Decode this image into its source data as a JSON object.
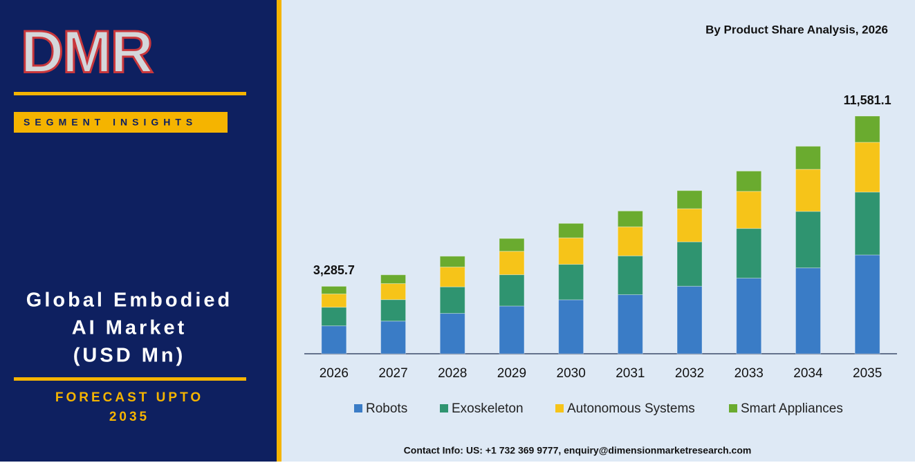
{
  "brand": {
    "logo": "DMR",
    "tag": "SEGMENT INSIGHTS",
    "title_lines": [
      "Global Embodied",
      "AI Market",
      "(USD Mn)"
    ],
    "forecast_lines": [
      "FORECAST UPTO",
      "2035"
    ]
  },
  "footer": "Contact Info: US: +1 732 369 9777, enquiry@dimensionmarketresearch.com",
  "chart_data": {
    "type": "stacked_bar",
    "subtitle": "By Product Share Analysis, 2026",
    "categories": [
      "2026",
      "2027",
      "2028",
      "2029",
      "2030",
      "2031",
      "2032",
      "2033",
      "2034",
      "2035"
    ],
    "series": [
      {
        "name": "Robots",
        "color": "#3a7cc6",
        "values": [
          1361.0,
          1592,
          1968,
          2325,
          2630,
          2880,
          3291,
          3685,
          4186,
          4815
        ]
      },
      {
        "name": "Exoskeleton",
        "color": "#2f9470",
        "values": [
          907.0,
          1046,
          1293,
          1528,
          1728,
          1892,
          2162,
          2421,
          2750,
          3064
        ]
      },
      {
        "name": "Autonomous Systems",
        "color": "#f6c419",
        "values": [
          647.0,
          781,
          965,
          1140,
          1289,
          1412,
          1614,
          1807,
          2052,
          2424
        ]
      },
      {
        "name": "Smart Appliances",
        "color": "#6aab2f",
        "values": [
          370.7,
          427,
          527,
          624,
          705,
          772,
          883,
          988,
          1122,
          1278.1
        ]
      }
    ],
    "annotations": [
      {
        "x": "2026",
        "value": 3285.7,
        "label": "3,285.7"
      },
      {
        "x": "2035",
        "value": 11581.1,
        "label": "11,581.1"
      }
    ],
    "legend": "bottom"
  }
}
